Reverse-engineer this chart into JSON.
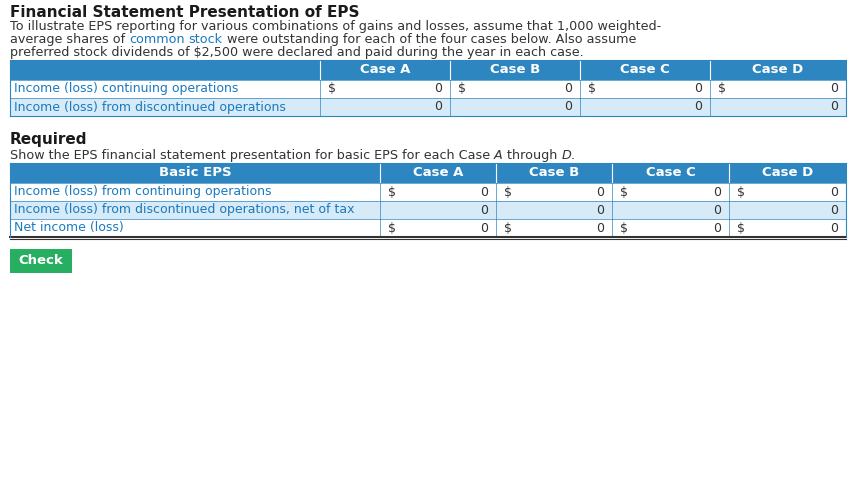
{
  "title": "Financial Statement Presentation of EPS",
  "intro_line0": "To illustrate EPS reporting for various combinations of gains and losses, assume that 1,000 weighted-",
  "intro_line1_parts": [
    [
      "average shares of ",
      "#333333",
      false
    ],
    [
      "common",
      "#1a7abf",
      false
    ],
    [
      " ",
      "#333333",
      false
    ],
    [
      "stock",
      "#1a7abf",
      false
    ],
    [
      " were outstanding for each of the four cases below. Also assume",
      "#333333",
      false
    ]
  ],
  "intro_line2": "preferred stock dividends of $2,500 were declared and paid during the year in each case.",
  "table1_header_bg": "#2e86c1",
  "table1_header_text": "#ffffff",
  "table1_row1_bg": "#ffffff",
  "table1_row2_bg": "#d6eaf8",
  "table1_border_color": "#2e86c1",
  "table1_header": [
    "",
    "Case A",
    "Case B",
    "Case C",
    "Case D"
  ],
  "table1_rows": [
    [
      "Income (loss) continuing operations",
      "$",
      "0",
      "$",
      "0",
      "$",
      "0",
      "$",
      "0"
    ],
    [
      "Income (loss) from discontinued operations",
      "",
      "0",
      "",
      "0",
      "",
      "0",
      "",
      "0"
    ]
  ],
  "required_label": "Required",
  "req_text_parts": [
    [
      "Show the EPS financial statement presentation for basic EPS for each Case ",
      "#333333",
      false,
      false
    ],
    [
      "A",
      "#333333",
      false,
      true
    ],
    [
      " through ",
      "#333333",
      false,
      false
    ],
    [
      "D",
      "#333333",
      false,
      true
    ],
    [
      ".",
      "#333333",
      false,
      false
    ]
  ],
  "table2_header_bg": "#2e86c1",
  "table2_header_text": "#ffffff",
  "table2_row1_bg": "#ffffff",
  "table2_row2_bg": "#d6eaf8",
  "table2_row3_bg": "#ffffff",
  "table2_border_color": "#2e86c1",
  "table2_header": [
    "Basic EPS",
    "Case A",
    "Case B",
    "Case C",
    "Case D"
  ],
  "table2_rows": [
    [
      "Income (loss) from continuing operations",
      "$",
      "0",
      "$",
      "0",
      "$",
      "0",
      "$",
      "0"
    ],
    [
      "Income (loss) from discontinued operations, net of tax",
      "",
      "0",
      "",
      "0",
      "",
      "0",
      "",
      "0"
    ],
    [
      "Net income (loss)",
      "$",
      "0",
      "$",
      "0",
      "$",
      "0",
      "$",
      "0"
    ]
  ],
  "check_button_color": "#27ae60",
  "check_button_text": "Check",
  "check_button_text_color": "#ffffff",
  "row_text_color": "#1a7abf",
  "body_text_color": "#333333",
  "bg_color": "#ffffff"
}
